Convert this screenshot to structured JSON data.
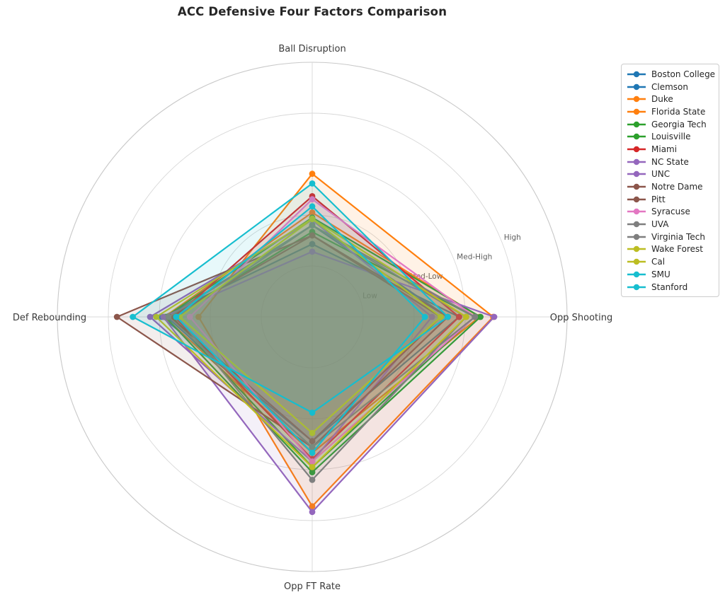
{
  "title": "ACC Defensive Four Factors Comparison",
  "chart_data": {
    "type": "radar",
    "axes": [
      "Ball Disruption",
      "Opp Shooting",
      "Opp FT Rate",
      "Def Rebounding"
    ],
    "tick_labels": [
      "Low",
      "Med-Low",
      "Med-High",
      "High"
    ],
    "tick_values": [
      1,
      2,
      3,
      4
    ],
    "r_axis": {
      "min": 0,
      "max": 5
    },
    "grid": true,
    "legend_position": "upper right",
    "series": [
      {
        "name": "Boston College",
        "color": "#1f77b4",
        "values": [
          1.8,
          2.66,
          2.56,
          2.85
        ]
      },
      {
        "name": "Clemson",
        "color": "#1f77b4",
        "values": [
          1.43,
          2.88,
          2.44,
          2.95
        ]
      },
      {
        "name": "Duke",
        "color": "#ff7f0e",
        "values": [
          2.05,
          3.28,
          2.67,
          2.9
        ]
      },
      {
        "name": "Florida State",
        "color": "#ff7f0e",
        "values": [
          2.81,
          3.55,
          3.72,
          2.23
        ]
      },
      {
        "name": "Georgia Tech",
        "color": "#2ca02c",
        "values": [
          1.95,
          3.3,
          3.05,
          2.88
        ]
      },
      {
        "name": "Louisville",
        "color": "#2ca02c",
        "values": [
          1.67,
          3.19,
          2.95,
          2.75
        ]
      },
      {
        "name": "Miami",
        "color": "#d62728",
        "values": [
          2.37,
          2.88,
          2.79,
          2.7
        ]
      },
      {
        "name": "NC State",
        "color": "#9467bd",
        "values": [
          1.9,
          2.35,
          2.84,
          3.18
        ]
      },
      {
        "name": "UNC",
        "color": "#9467bd",
        "values": [
          1.28,
          3.57,
          3.83,
          2.92
        ]
      },
      {
        "name": "Notre Dame",
        "color": "#8c564b",
        "values": [
          1.6,
          2.52,
          2.44,
          2.78
        ]
      },
      {
        "name": "Pitt",
        "color": "#8c564b",
        "values": [
          1.6,
          2.66,
          2.56,
          3.83
        ]
      },
      {
        "name": "Syracuse",
        "color": "#e377c2",
        "values": [
          2.31,
          3.19,
          2.84,
          2.4
        ]
      },
      {
        "name": "UVA",
        "color": "#7f7f7f",
        "values": [
          1.8,
          3.19,
          2.56,
          2.82
        ]
      },
      {
        "name": "Virginia Tech",
        "color": "#7f7f7f",
        "values": [
          1.8,
          3.02,
          3.2,
          2.65
        ]
      },
      {
        "name": "Wake Forest",
        "color": "#bcbd22",
        "values": [
          1.93,
          3.02,
          2.95,
          3.06
        ]
      },
      {
        "name": "Cal",
        "color": "#bcbd22",
        "values": [
          1.92,
          2.52,
          2.28,
          2.6
        ]
      },
      {
        "name": "SMU",
        "color": "#17becf",
        "values": [
          2.62,
          2.66,
          1.88,
          3.52
        ]
      },
      {
        "name": "Stanford",
        "color": "#17becf",
        "values": [
          2.17,
          2.21,
          2.67,
          2.67
        ]
      }
    ]
  }
}
